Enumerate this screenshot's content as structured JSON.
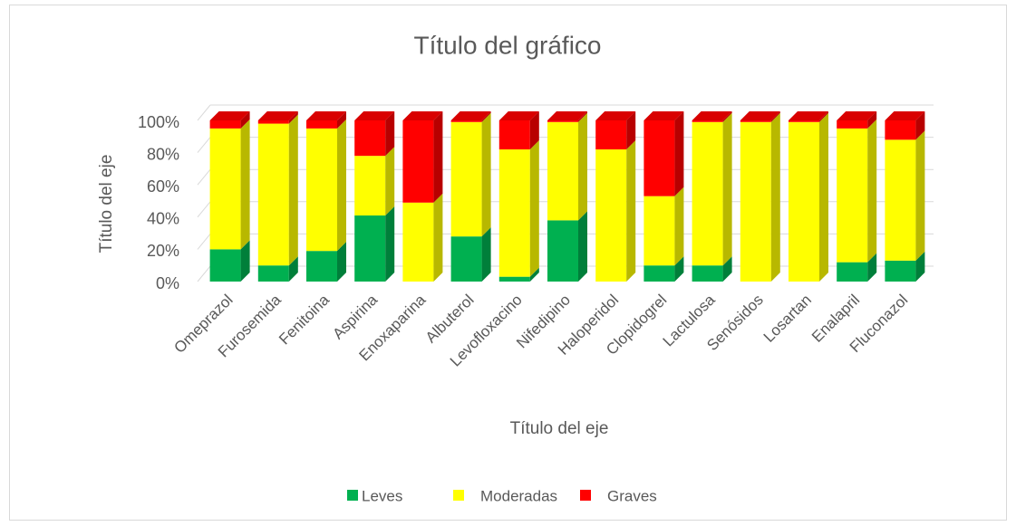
{
  "chart_data": {
    "type": "bar3d_stacked_percent",
    "title": "Título del gráfico",
    "x_axis_label": "Título del eje",
    "y_axis_label": "Título del eje",
    "categories": [
      "Omeprazol",
      "Furosemida",
      "Fenitoina",
      "Aspirina",
      "Enoxaparina",
      "Albuterol",
      "Levofloxacino",
      "Nifedipino",
      "Haloperidol",
      "Clopidogrel",
      "Lactulosa",
      "Senósidos",
      "Losartan",
      "Enalapril",
      "Fluconazol"
    ],
    "series": [
      {
        "name": "Leves",
        "color": "#00b050",
        "values": [
          20,
          10,
          19,
          41,
          0,
          28,
          3,
          38,
          0,
          10,
          10,
          0,
          0,
          12,
          13
        ]
      },
      {
        "name": "Moderadas",
        "color": "#ffff00",
        "values": [
          75,
          88,
          76,
          37,
          49,
          71,
          79,
          61,
          82,
          43,
          89,
          99,
          99,
          83,
          75
        ]
      },
      {
        "name": "Graves",
        "color": "#ff0000",
        "values": [
          5,
          2,
          5,
          22,
          51,
          1,
          18,
          1,
          18,
          47,
          1,
          1,
          1,
          5,
          12
        ]
      }
    ],
    "ylim": [
      0,
      100
    ],
    "yticks": [
      {
        "value": 0,
        "label": "0%"
      },
      {
        "value": 20,
        "label": "20%"
      },
      {
        "value": 40,
        "label": "40%"
      },
      {
        "value": 60,
        "label": "60%"
      },
      {
        "value": 80,
        "label": "80%"
      },
      {
        "value": 100,
        "label": "100%"
      }
    ],
    "grid": true,
    "legend": "bottom"
  }
}
